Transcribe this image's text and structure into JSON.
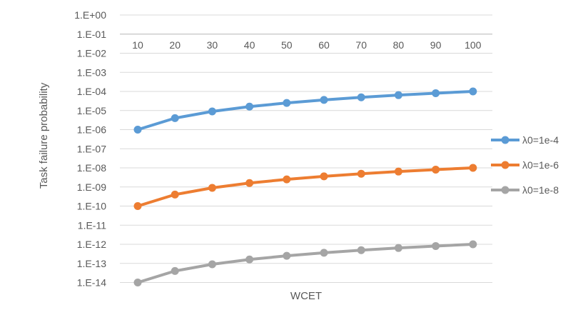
{
  "chart_data": {
    "type": "line",
    "x": [
      10,
      20,
      30,
      40,
      50,
      60,
      70,
      80,
      90,
      100
    ],
    "xlabel": "WCET",
    "ylabel": "Task failure probability",
    "yscale": "log",
    "ylim": [
      1e-14,
      1
    ],
    "yticks": [
      "1.E+00",
      "1.E-01",
      "1.E-02",
      "1.E-03",
      "1.E-04",
      "1.E-05",
      "1.E-06",
      "1.E-07",
      "1.E-08",
      "1.E-09",
      "1.E-10",
      "1.E-11",
      "1.E-12",
      "1.E-13",
      "1.E-14"
    ],
    "grid": "horizontal",
    "x_axis_position": "top, crossing at 1.E-01",
    "legend_position": "right",
    "series": [
      {
        "name": "λ0=1e-4",
        "color": "#5b9bd5",
        "values": [
          1e-06,
          4e-06,
          9e-06,
          1.6e-05,
          2.5e-05,
          3.6e-05,
          4.9e-05,
          6.4e-05,
          8.1e-05,
          0.0001
        ]
      },
      {
        "name": "λ0=1e-6",
        "color": "#ed7d31",
        "values": [
          1e-10,
          4e-10,
          9e-10,
          1.6e-09,
          2.5e-09,
          3.6e-09,
          4.9e-09,
          6.4e-09,
          8.1e-09,
          1e-08
        ]
      },
      {
        "name": "λ0=1e-8",
        "color": "#a5a5a5",
        "values": [
          1e-14,
          4e-14,
          9e-14,
          1.6e-13,
          2.5e-13,
          3.6e-13,
          4.9e-13,
          6.4e-13,
          8.1e-13,
          1e-12
        ]
      }
    ]
  }
}
